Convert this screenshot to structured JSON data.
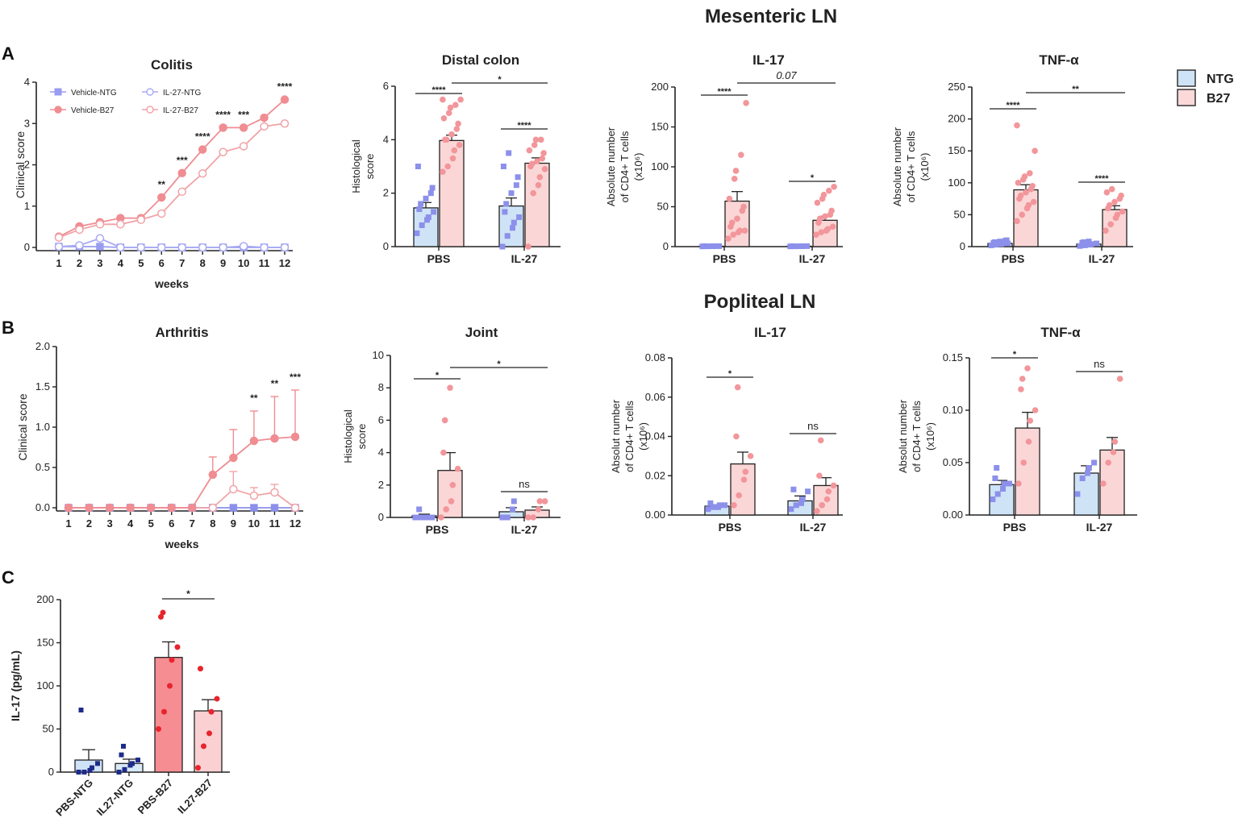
{
  "section_titles": {
    "mesenteric": "Mesenteric LN",
    "popliteal": "Popliteal LN"
  },
  "panel_labels": [
    "A",
    "B",
    "C"
  ],
  "legend": {
    "items": [
      {
        "label": "NTG",
        "fill": "#cfe3f7"
      },
      {
        "label": "B27",
        "fill": "#fcd9d9"
      }
    ]
  },
  "colors": {
    "ntg_marker": "#8c90ea",
    "b27_marker": "#f2969b",
    "b27_fill": "#fbd6d6",
    "ntg_fill": "#cfe3f7",
    "red_marker": "#e8242d",
    "navy_marker": "#1d2b8a"
  },
  "chart_data": [
    {
      "id": "colitis",
      "type": "line",
      "title": "Colitis",
      "xlabel": "weeks",
      "ylabel": "Clinical score",
      "ylim": [
        0,
        4
      ],
      "x": [
        1,
        2,
        3,
        4,
        5,
        6,
        7,
        8,
        9,
        10,
        11,
        12
      ],
      "yticks": [
        "0",
        "1",
        "2",
        "3",
        "4"
      ],
      "series": [
        {
          "name": "Vehicle-NTG",
          "values": [
            0.02,
            0.02,
            0.02,
            0.0,
            0.0,
            0.0,
            0.0,
            0.0,
            0.0,
            0.0,
            0.0,
            0.0
          ]
        },
        {
          "name": "IL-27-NTG",
          "values": [
            0.02,
            0.05,
            0.22,
            0.0,
            0.0,
            0.0,
            0.0,
            0.0,
            0.0,
            0.03,
            0.0,
            0.0
          ]
        },
        {
          "name": "Vehicle-B27",
          "values": [
            0.26,
            0.51,
            0.61,
            0.71,
            0.71,
            1.21,
            1.8,
            2.37,
            2.9,
            2.9,
            3.14,
            3.58
          ]
        },
        {
          "name": "IL-27-B27",
          "values": [
            0.24,
            0.43,
            0.56,
            0.56,
            0.67,
            0.82,
            1.35,
            1.79,
            2.31,
            2.45,
            2.93,
            3.0
          ]
        }
      ],
      "annotations": [
        {
          "x": 6,
          "text": "**"
        },
        {
          "x": 7,
          "text": "***"
        },
        {
          "x": 8,
          "text": "****"
        },
        {
          "x": 9,
          "text": "****"
        },
        {
          "x": 10,
          "text": "***"
        },
        {
          "x": 12,
          "text": "****"
        }
      ]
    },
    {
      "id": "distal_colon",
      "type": "bar",
      "title": "Distal colon",
      "ylabel_lines": [
        "Histological",
        "score"
      ],
      "ylim": [
        0,
        6
      ],
      "yticks": [
        "0",
        "2",
        "4",
        "6"
      ],
      "categories": [
        "PBS",
        "IL-27"
      ],
      "series": [
        {
          "name": "NTG",
          "values": [
            1.45,
            1.52
          ],
          "sem": [
            0.2,
            0.3
          ],
          "points": [
            [
              0.5,
              0.8,
              1.0,
              1.1,
              1.3,
              1.4,
              1.6,
              1.8,
              2.0,
              2.2,
              3.0
            ],
            [
              0.0,
              0.4,
              0.7,
              0.9,
              1.1,
              1.3,
              1.6,
              2.0,
              2.3,
              2.6,
              3.0,
              3.5
            ]
          ]
        },
        {
          "name": "B27",
          "values": [
            3.97,
            3.12
          ],
          "sem": [
            0.2,
            0.2
          ],
          "points": [
            [
              2.8,
              3.0,
              3.3,
              3.6,
              3.8,
              4.0,
              4.0,
              4.2,
              4.4,
              4.6,
              4.8,
              5.0,
              5.2,
              5.3,
              5.5,
              5.5
            ],
            [
              0.0,
              2.0,
              2.3,
              2.6,
              2.9,
              3.0,
              3.1,
              3.2,
              3.3,
              3.5,
              3.6,
              3.8,
              4.0,
              4.0
            ]
          ]
        }
      ],
      "comparisons": [
        {
          "text": "****",
          "from": [
            0,
            0
          ],
          "to": [
            0,
            1
          ]
        },
        {
          "text": "****",
          "from": [
            1,
            0
          ],
          "to": [
            1,
            1
          ]
        },
        {
          "text": "*",
          "from": [
            0,
            1
          ],
          "to": [
            1,
            1
          ]
        }
      ]
    },
    {
      "id": "mes_il17",
      "type": "bar",
      "title": "IL-17",
      "ylabel_lines": [
        "Absolute number",
        "of CD4+ T cells",
        "(x10⁶)"
      ],
      "ylim": [
        0,
        200
      ],
      "yticks": [
        "0",
        "50",
        "100",
        "150",
        "200"
      ],
      "categories": [
        "PBS",
        "IL-27"
      ],
      "series": [
        {
          "name": "NTG",
          "values": [
            0.5,
            0.5
          ],
          "sem": [
            0.1,
            0.1
          ],
          "points": [
            [
              0.3,
              0.4,
              0.5,
              0.5,
              0.6,
              0.6
            ],
            [
              0.3,
              0.4,
              0.5,
              0.5,
              0.6,
              0.6
            ]
          ]
        },
        {
          "name": "B27",
          "values": [
            57,
            33
          ],
          "sem": [
            12,
            5
          ],
          "points": [
            [
              10,
              15,
              18,
              20,
              20,
              25,
              30,
              35,
              45,
              50,
              60,
              85,
              95,
              115,
              180
            ],
            [
              15,
              18,
              20,
              22,
              25,
              30,
              35,
              38,
              40,
              45,
              55,
              60,
              65,
              70,
              75
            ]
          ]
        }
      ],
      "comparisons": [
        {
          "text": "****",
          "from": [
            0,
            0
          ],
          "to": [
            0,
            1
          ]
        },
        {
          "text": "*",
          "from": [
            1,
            0
          ],
          "to": [
            1,
            1
          ]
        },
        {
          "text": "0.07",
          "from": [
            0,
            1
          ],
          "to": [
            1,
            1
          ],
          "italic": true
        }
      ]
    },
    {
      "id": "mes_tnf",
      "type": "bar",
      "title": "TNF-α",
      "ylabel_lines": [
        "Absolute number",
        "of CD4+ T cells",
        "(x10⁶)"
      ],
      "ylim": [
        0,
        250
      ],
      "yticks": [
        "0",
        "50",
        "100",
        "150",
        "200",
        "250"
      ],
      "categories": [
        "PBS",
        "IL-27"
      ],
      "series": [
        {
          "name": "NTG",
          "values": [
            5,
            4
          ],
          "sem": [
            1,
            1
          ],
          "points": [
            [
              2,
              3,
              4,
              5,
              5,
              6,
              7,
              8,
              9,
              10
            ],
            [
              1,
              2,
              3,
              4,
              5,
              6,
              7,
              8
            ]
          ]
        },
        {
          "name": "B27",
          "values": [
            89,
            58
          ],
          "sem": [
            8,
            6
          ],
          "points": [
            [
              40,
              50,
              60,
              65,
              70,
              75,
              80,
              85,
              90,
              95,
              100,
              105,
              110,
              115,
              150,
              190
            ],
            [
              25,
              35,
              45,
              50,
              55,
              60,
              65,
              70,
              75,
              80,
              85,
              90
            ]
          ]
        }
      ],
      "comparisons": [
        {
          "text": "****",
          "from": [
            0,
            0
          ],
          "to": [
            0,
            1
          ]
        },
        {
          "text": "****",
          "from": [
            1,
            0
          ],
          "to": [
            1,
            1
          ]
        },
        {
          "text": "**",
          "from": [
            0,
            1
          ],
          "to": [
            1,
            1
          ]
        }
      ]
    },
    {
      "id": "arthritis",
      "type": "line",
      "title": "Arthritis",
      "xlabel": "weeks",
      "ylabel": "Clinical score",
      "ylim": [
        0,
        2
      ],
      "yticks": [
        "0.0",
        "0.5",
        "1.0",
        "1.5",
        "2.0"
      ],
      "x": [
        1,
        2,
        3,
        4,
        5,
        6,
        7,
        8,
        9,
        10,
        11,
        12
      ],
      "series": [
        {
          "name": "NTG",
          "values": [
            0,
            0,
            0,
            0,
            0,
            0,
            0,
            0,
            0,
            0,
            0,
            0
          ]
        },
        {
          "name": "IL-27-B27",
          "values": [
            0,
            0,
            0,
            0,
            0,
            0,
            0,
            0,
            0.23,
            0.15,
            0.19,
            0
          ],
          "err": [
            0,
            0,
            0,
            0,
            0,
            0,
            0,
            0,
            0.22,
            0.1,
            0.1,
            0
          ]
        },
        {
          "name": "Vehicle-B27",
          "values": [
            0,
            0,
            0,
            0,
            0,
            0,
            0,
            0.41,
            0.62,
            0.83,
            0.86,
            0.88
          ],
          "err": [
            0,
            0,
            0,
            0,
            0,
            0,
            0,
            0.22,
            0.35,
            0.37,
            0.52,
            0.58
          ]
        }
      ],
      "annotations": [
        {
          "x": 10,
          "text": "**"
        },
        {
          "x": 11,
          "text": "**"
        },
        {
          "x": 12,
          "text": "***"
        }
      ]
    },
    {
      "id": "joint",
      "type": "bar",
      "title": "Joint",
      "ylabel_lines": [
        "Histological",
        "score"
      ],
      "ylim": [
        0,
        10
      ],
      "yticks": [
        "0",
        "2",
        "4",
        "6",
        "8",
        "10"
      ],
      "categories": [
        "PBS",
        "IL-27"
      ],
      "series": [
        {
          "name": "NTG",
          "values": [
            0.1,
            0.35
          ],
          "sem": [
            0.1,
            0.25
          ],
          "points": [
            [
              0,
              0,
              0,
              0,
              0,
              0,
              0.5
            ],
            [
              0,
              0,
              0.5,
              1
            ]
          ]
        },
        {
          "name": "B27",
          "values": [
            2.9,
            0.45
          ],
          "sem": [
            1.1,
            0.2
          ],
          "points": [
            [
              0,
              0.5,
              1,
              2,
              3,
              4,
              6,
              8
            ],
            [
              0,
              0,
              0.5,
              1,
              1
            ]
          ]
        }
      ],
      "comparisons": [
        {
          "text": "*",
          "from": [
            0,
            0
          ],
          "to": [
            0,
            1
          ]
        },
        {
          "text": "ns",
          "from": [
            1,
            0
          ],
          "to": [
            1,
            1
          ]
        },
        {
          "text": "*",
          "from": [
            0,
            1
          ],
          "to": [
            1,
            1
          ]
        }
      ]
    },
    {
      "id": "pop_il17",
      "type": "bar",
      "title": "IL-17",
      "ylabel_lines": [
        "Absolut number",
        "of CD4+ T cells",
        "(x10⁶)"
      ],
      "ylim": [
        0,
        0.08
      ],
      "yticks": [
        "0.00",
        "0.02",
        "0.04",
        "0.06",
        "0.08"
      ],
      "categories": [
        "PBS",
        "IL-27"
      ],
      "series": [
        {
          "name": "NTG",
          "values": [
            0.0045,
            0.0072
          ],
          "sem": [
            0.0007,
            0.0025
          ],
          "points": [
            [
              0.003,
              0.004,
              0.004,
              0.005,
              0.005,
              0.006
            ],
            [
              0.003,
              0.005,
              0.006,
              0.008,
              0.012,
              0.013
            ]
          ]
        },
        {
          "name": "B27",
          "values": [
            0.026,
            0.015
          ],
          "sem": [
            0.006,
            0.004
          ],
          "points": [
            [
              0.005,
              0.01,
              0.018,
              0.022,
              0.03,
              0.04,
              0.065
            ],
            [
              0.002,
              0.005,
              0.008,
              0.012,
              0.015,
              0.02,
              0.038
            ]
          ]
        }
      ],
      "comparisons": [
        {
          "text": "*",
          "from": [
            0,
            0
          ],
          "to": [
            0,
            1
          ]
        },
        {
          "text": "ns",
          "from": [
            1,
            0
          ],
          "to": [
            1,
            1
          ]
        }
      ]
    },
    {
      "id": "pop_tnf",
      "type": "bar",
      "title": "TNF-α",
      "ylabel_lines": [
        "Absolut number",
        "of CD4+ T cells",
        "(x10⁶)"
      ],
      "ylim": [
        0,
        0.15
      ],
      "yticks": [
        "0.00",
        "0.05",
        "0.10",
        "0.15"
      ],
      "categories": [
        "PBS",
        "IL-27"
      ],
      "series": [
        {
          "name": "NTG",
          "values": [
            0.029,
            0.04
          ],
          "sem": [
            0.004,
            0.007
          ],
          "points": [
            [
              0.015,
              0.02,
              0.025,
              0.03,
              0.03,
              0.035,
              0.045
            ],
            [
              0.02,
              0.035,
              0.04,
              0.045,
              0.05
            ]
          ]
        },
        {
          "name": "B27",
          "values": [
            0.083,
            0.062
          ],
          "sem": [
            0.015,
            0.012
          ],
          "points": [
            [
              0.03,
              0.05,
              0.07,
              0.09,
              0.1,
              0.12,
              0.13,
              0.14
            ],
            [
              0.03,
              0.05,
              0.06,
              0.07,
              0.13
            ]
          ]
        }
      ],
      "comparisons": [
        {
          "text": "*",
          "from": [
            0,
            0
          ],
          "to": [
            0,
            1
          ]
        },
        {
          "text": "ns",
          "from": [
            1,
            0
          ],
          "to": [
            1,
            1
          ]
        }
      ]
    },
    {
      "id": "serum_il17",
      "type": "bar",
      "title": "",
      "ylabel": "IL-17 (pg/mL)",
      "ylim": [
        0,
        200
      ],
      "yticks": [
        "0",
        "50",
        "100",
        "150",
        "200"
      ],
      "categories": [
        "PBS-NTG",
        "IL27-NTG",
        "PBS-B27",
        "IL27-B27"
      ],
      "values": [
        14,
        10,
        133,
        71
      ],
      "sem": [
        12,
        5,
        18,
        13
      ],
      "points": [
        [
          0,
          0,
          2,
          5,
          10,
          72
        ],
        [
          0,
          3,
          8,
          10,
          14,
          20,
          30
        ],
        [
          50,
          70,
          100,
          130,
          145,
          180,
          185
        ],
        [
          5,
          30,
          45,
          70,
          85,
          120
        ]
      ],
      "comparisons": [
        {
          "text": "*",
          "from": 2,
          "to": 3
        }
      ]
    }
  ]
}
